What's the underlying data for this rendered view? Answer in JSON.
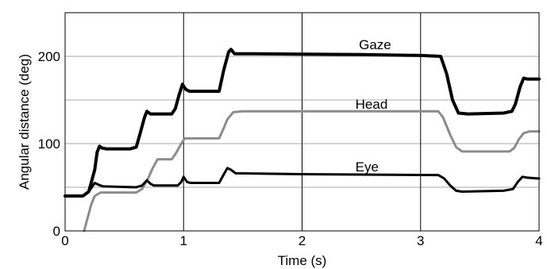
{
  "chart_data": {
    "type": "line",
    "title": "",
    "xlabel": "Time (s)",
    "ylabel": "Angular distance (deg)",
    "xlim": [
      0,
      4
    ],
    "ylim": [
      0,
      250
    ],
    "grid": true,
    "x_ticks": [
      "0",
      "1",
      "2",
      "3",
      "4"
    ],
    "y_ticks": [
      "0",
      "100",
      "200"
    ],
    "y_gridlines": [
      0,
      50,
      100,
      150,
      200
    ],
    "series": [
      {
        "name": "Gaze",
        "color": "#000000",
        "points": [
          [
            0,
            40
          ],
          [
            0.15,
            40
          ],
          [
            0.2,
            45
          ],
          [
            0.25,
            70
          ],
          [
            0.27,
            90
          ],
          [
            0.29,
            97
          ],
          [
            0.31,
            95
          ],
          [
            0.35,
            94
          ],
          [
            0.55,
            94
          ],
          [
            0.6,
            96
          ],
          [
            0.63,
            110
          ],
          [
            0.67,
            130
          ],
          [
            0.69,
            137
          ],
          [
            0.72,
            134
          ],
          [
            0.9,
            134
          ],
          [
            0.93,
            140
          ],
          [
            0.96,
            155
          ],
          [
            0.99,
            168
          ],
          [
            1.02,
            162
          ],
          [
            1.05,
            160
          ],
          [
            1.3,
            160
          ],
          [
            1.34,
            185
          ],
          [
            1.38,
            205
          ],
          [
            1.4,
            208
          ],
          [
            1.43,
            203
          ],
          [
            1.6,
            203
          ],
          [
            2.5,
            202
          ],
          [
            3.0,
            201
          ],
          [
            3.17,
            200
          ],
          [
            3.22,
            180
          ],
          [
            3.27,
            150
          ],
          [
            3.32,
            135
          ],
          [
            3.4,
            134
          ],
          [
            3.7,
            135
          ],
          [
            3.77,
            137
          ],
          [
            3.8,
            145
          ],
          [
            3.84,
            165
          ],
          [
            3.87,
            175
          ],
          [
            3.9,
            174
          ],
          [
            4.0,
            174
          ]
        ]
      },
      {
        "name": "Head",
        "color": "#8c8c8c",
        "points": [
          [
            0.16,
            0
          ],
          [
            0.19,
            15
          ],
          [
            0.22,
            30
          ],
          [
            0.25,
            40
          ],
          [
            0.3,
            44
          ],
          [
            0.6,
            44
          ],
          [
            0.65,
            48
          ],
          [
            0.7,
            60
          ],
          [
            0.74,
            72
          ],
          [
            0.78,
            82
          ],
          [
            0.9,
            82
          ],
          [
            0.94,
            90
          ],
          [
            0.98,
            100
          ],
          [
            1.01,
            106
          ],
          [
            1.3,
            106
          ],
          [
            1.33,
            115
          ],
          [
            1.37,
            128
          ],
          [
            1.42,
            136
          ],
          [
            1.5,
            137
          ],
          [
            2.0,
            137
          ],
          [
            3.15,
            137
          ],
          [
            3.19,
            130
          ],
          [
            3.25,
            110
          ],
          [
            3.3,
            96
          ],
          [
            3.35,
            91
          ],
          [
            3.75,
            91
          ],
          [
            3.79,
            95
          ],
          [
            3.83,
            105
          ],
          [
            3.87,
            112
          ],
          [
            3.92,
            114
          ],
          [
            4.0,
            114
          ]
        ]
      },
      {
        "name": "Eye",
        "color": "#000000",
        "points": [
          [
            0,
            40
          ],
          [
            0.15,
            40
          ],
          [
            0.2,
            45
          ],
          [
            0.25,
            55
          ],
          [
            0.28,
            53
          ],
          [
            0.32,
            51
          ],
          [
            0.6,
            50
          ],
          [
            0.65,
            52
          ],
          [
            0.69,
            58
          ],
          [
            0.72,
            54
          ],
          [
            0.75,
            52
          ],
          [
            0.95,
            52
          ],
          [
            0.98,
            56
          ],
          [
            1.0,
            62
          ],
          [
            1.03,
            56
          ],
          [
            1.06,
            55
          ],
          [
            1.3,
            55
          ],
          [
            1.34,
            65
          ],
          [
            1.37,
            72
          ],
          [
            1.4,
            70
          ],
          [
            1.44,
            66
          ],
          [
            2.0,
            65
          ],
          [
            3.15,
            64
          ],
          [
            3.2,
            60
          ],
          [
            3.25,
            52
          ],
          [
            3.3,
            46
          ],
          [
            3.35,
            45
          ],
          [
            3.7,
            46
          ],
          [
            3.78,
            48
          ],
          [
            3.82,
            56
          ],
          [
            3.86,
            62
          ],
          [
            3.9,
            61
          ],
          [
            4.0,
            60
          ]
        ]
      }
    ],
    "annotations": [
      {
        "text": "Gaze",
        "x": 2.48,
        "y": 208
      },
      {
        "text": "Head",
        "x": 2.45,
        "y": 140
      },
      {
        "text": "Eye",
        "x": 2.45,
        "y": 68
      }
    ]
  }
}
